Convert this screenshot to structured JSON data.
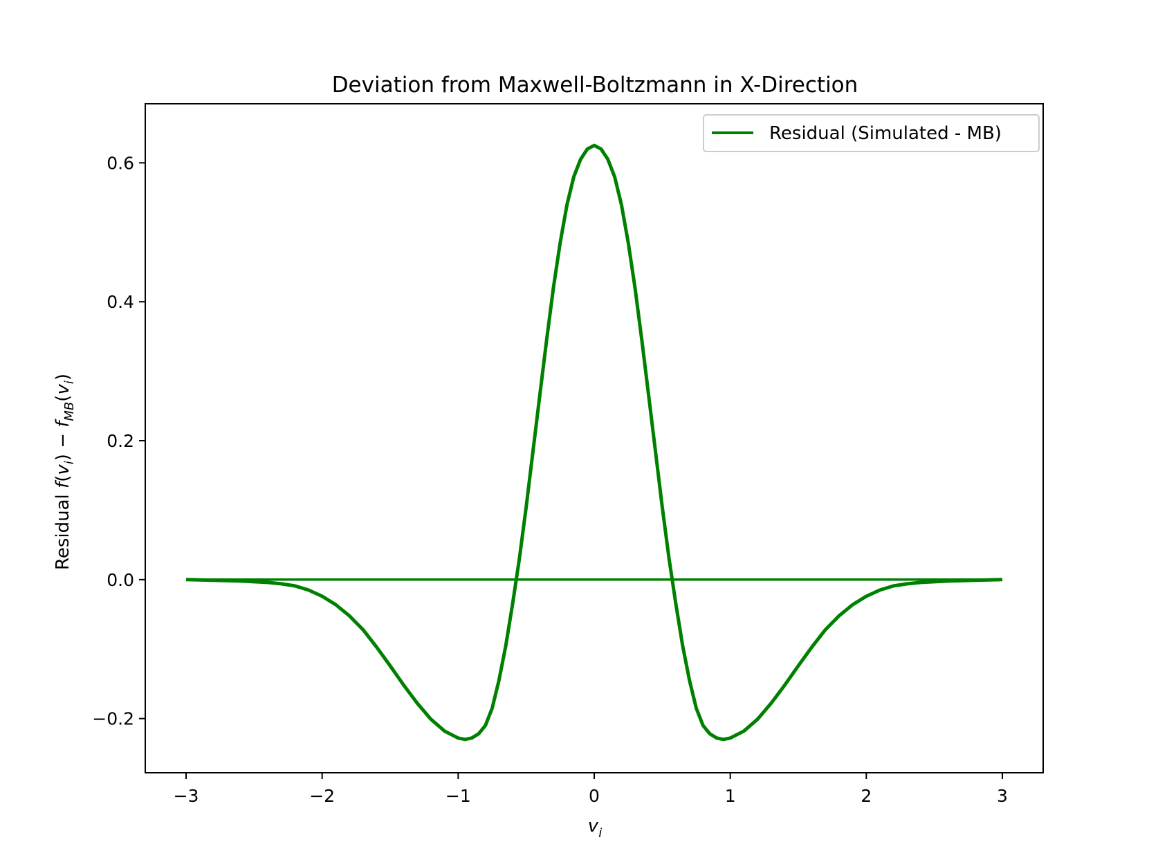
{
  "chart_data": {
    "type": "line",
    "title": "Deviation from Maxwell-Boltzmann in X-Direction",
    "xlabel": {
      "base": "v",
      "sub": "i"
    },
    "ylabel": {
      "text": "Residual ",
      "math": [
        {
          "t": "f",
          "i": true
        },
        {
          "t": "(",
          "i": false
        },
        {
          "t": "v",
          "i": true
        },
        {
          "t": "i",
          "i": true,
          "sub": true
        },
        {
          "t": ") − ",
          "i": false
        },
        {
          "t": "f",
          "i": true
        },
        {
          "t": "MB",
          "i": true,
          "sub": true
        },
        {
          "t": "(",
          "i": false
        },
        {
          "t": "v",
          "i": true
        },
        {
          "t": "i",
          "i": true,
          "sub": true
        },
        {
          "t": ")",
          "i": false
        }
      ]
    },
    "xlim": [
      -3.3,
      3.3
    ],
    "ylim": [
      -0.278,
      0.685
    ],
    "xticks": [
      -3,
      -2,
      -1,
      0,
      1,
      2,
      3
    ],
    "xtick_labels": [
      "−3",
      "−2",
      "−1",
      "0",
      "1",
      "2",
      "3"
    ],
    "yticks": [
      -0.2,
      0.0,
      0.2,
      0.4,
      0.6
    ],
    "ytick_labels": [
      "−0.2",
      "0.0",
      "0.2",
      "0.4",
      "0.6"
    ],
    "grid": false,
    "legend_position": "upper right",
    "series": [
      {
        "name": "Residual (Simulated - MB)",
        "color": "#008000",
        "x": [
          -3.0,
          -2.8,
          -2.6,
          -2.4,
          -2.3,
          -2.2,
          -2.1,
          -2.0,
          -1.9,
          -1.8,
          -1.7,
          -1.6,
          -1.5,
          -1.4,
          -1.3,
          -1.2,
          -1.1,
          -1.0,
          -0.95,
          -0.9,
          -0.85,
          -0.8,
          -0.75,
          -0.7,
          -0.65,
          -0.6,
          -0.55,
          -0.5,
          -0.45,
          -0.4,
          -0.35,
          -0.3,
          -0.25,
          -0.2,
          -0.15,
          -0.1,
          -0.05,
          0.0,
          0.05,
          0.1,
          0.15,
          0.2,
          0.25,
          0.3,
          0.35,
          0.4,
          0.45,
          0.5,
          0.55,
          0.6,
          0.65,
          0.7,
          0.75,
          0.8,
          0.85,
          0.9,
          0.95,
          1.0,
          1.1,
          1.2,
          1.3,
          1.4,
          1.5,
          1.6,
          1.7,
          1.8,
          1.9,
          2.0,
          2.1,
          2.2,
          2.3,
          2.4,
          2.6,
          2.8,
          3.0
        ],
        "y": [
          0.0,
          -0.001,
          -0.002,
          -0.004,
          -0.006,
          -0.009,
          -0.015,
          -0.024,
          -0.036,
          -0.052,
          -0.072,
          -0.097,
          -0.124,
          -0.152,
          -0.178,
          -0.201,
          -0.218,
          -0.228,
          -0.23,
          -0.228,
          -0.222,
          -0.21,
          -0.185,
          -0.145,
          -0.095,
          -0.035,
          0.03,
          0.105,
          0.185,
          0.265,
          0.345,
          0.42,
          0.485,
          0.54,
          0.58,
          0.605,
          0.62,
          0.625,
          0.62,
          0.605,
          0.58,
          0.54,
          0.485,
          0.42,
          0.345,
          0.265,
          0.185,
          0.105,
          0.03,
          -0.035,
          -0.095,
          -0.145,
          -0.185,
          -0.21,
          -0.222,
          -0.228,
          -0.23,
          -0.228,
          -0.218,
          -0.201,
          -0.178,
          -0.152,
          -0.124,
          -0.097,
          -0.072,
          -0.052,
          -0.036,
          -0.024,
          -0.015,
          -0.009,
          -0.006,
          -0.004,
          -0.002,
          -0.001,
          0.0
        ]
      },
      {
        "name": "",
        "color": "#008000",
        "x": [
          -3.0,
          3.0
        ],
        "y": [
          0.0,
          0.0
        ]
      }
    ]
  }
}
